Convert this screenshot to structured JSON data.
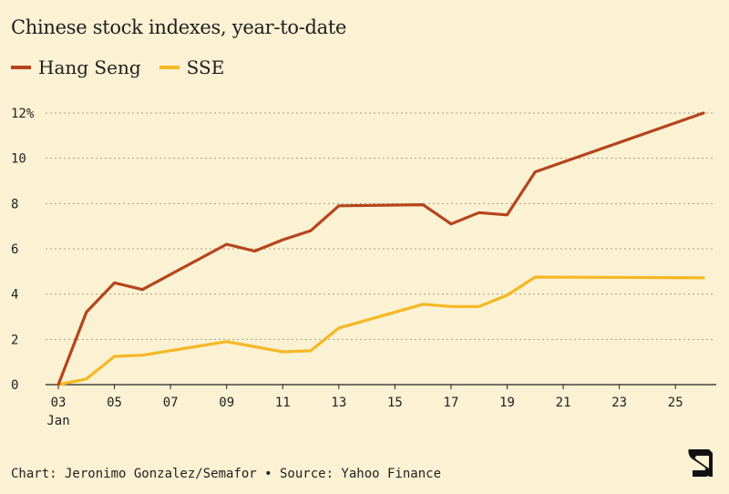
{
  "chart_data": {
    "type": "line",
    "title": "Chinese stock indexes, year-to-date",
    "x": [
      3,
      4,
      5,
      6,
      7,
      8,
      9,
      10,
      11,
      12,
      13,
      14,
      15,
      16,
      17,
      18,
      19,
      20,
      21,
      22,
      23,
      24,
      25,
      26
    ],
    "xlim": [
      3,
      26
    ],
    "x_ticks": [
      3,
      5,
      7,
      9,
      11,
      13,
      15,
      17,
      19,
      21,
      23,
      25
    ],
    "x_tick_labels": [
      "03",
      "05",
      "07",
      "09",
      "11",
      "13",
      "15",
      "17",
      "19",
      "21",
      "23",
      "25"
    ],
    "x_sublabel": "Jan",
    "ylim": [
      0,
      12
    ],
    "y_ticks": [
      0,
      2,
      4,
      6,
      8,
      10,
      12
    ],
    "y_tick_labels": [
      "0",
      "2",
      "4",
      "6",
      "8",
      "10",
      "12%"
    ],
    "grid": "horizontal-dotted",
    "legend_position": "top-left",
    "series": [
      {
        "name": "Hang Seng",
        "color": "#b5451b",
        "x": [
          3,
          4,
          5,
          6,
          9,
          10,
          11,
          12,
          13,
          16,
          17,
          18,
          19,
          20,
          26
        ],
        "values": [
          0,
          3.2,
          4.5,
          4.2,
          6.2,
          5.9,
          6.4,
          6.8,
          7.9,
          7.95,
          7.1,
          7.6,
          7.5,
          9.4,
          12.0
        ]
      },
      {
        "name": "SSE",
        "color": "#f5b823",
        "x": [
          3,
          4,
          5,
          6,
          9,
          11,
          12,
          13,
          16,
          17,
          18,
          19,
          20,
          26
        ],
        "values": [
          0,
          0.25,
          1.25,
          1.3,
          1.9,
          1.45,
          1.5,
          2.5,
          3.55,
          3.45,
          3.45,
          3.95,
          4.75,
          4.72
        ]
      }
    ]
  },
  "footer": {
    "credit": "Chart: Jeronimo Gonzalez/Semafor • Source: Yahoo Finance"
  },
  "logo": {
    "icon": "semafor-logo-icon"
  }
}
